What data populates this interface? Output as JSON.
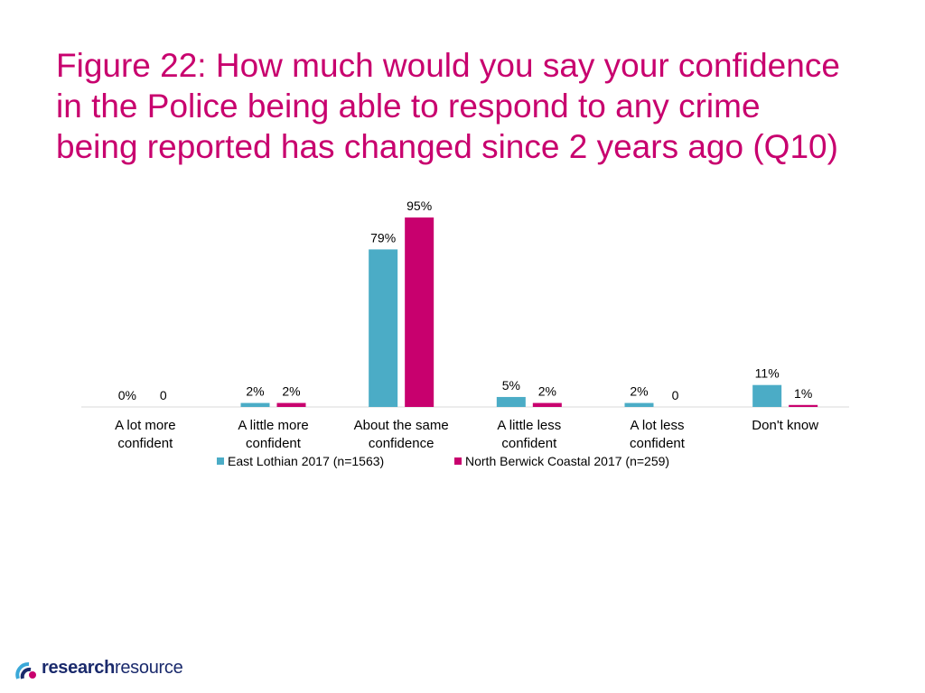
{
  "title_lines": [
    "Figure 22: How much would you say your confidence",
    "in the Police being able to respond to any crime",
    "being reported has changed since 2 years ago (Q10)"
  ],
  "colors": {
    "title": "#c8006e",
    "series1": "#4bacc6",
    "series2": "#c8006e",
    "text": "#000000"
  },
  "logo": {
    "word1": "research",
    "word2": "resource",
    "icon": "research-resource-swirl-icon"
  },
  "chart_data": {
    "type": "bar",
    "title": "Figure 22: How much would you say your confidence in the Police being able to respond to any crime being reported has changed since 2 years ago (Q10)",
    "categories": [
      [
        "A lot more",
        "confident"
      ],
      [
        "A little more",
        "confident"
      ],
      [
        "About the same",
        "confidence"
      ],
      [
        "A little less",
        "confident"
      ],
      [
        "A lot less",
        "confident"
      ],
      [
        "Don't know"
      ]
    ],
    "series": [
      {
        "name": "East Lothian 2017 (n=1563)",
        "values": [
          0,
          2,
          79,
          5,
          2,
          11
        ],
        "labels": [
          "0%",
          "2%",
          "79%",
          "5%",
          "2%",
          "11%"
        ]
      },
      {
        "name": "North Berwick Coastal 2017 (n=259)",
        "values": [
          0,
          2,
          95,
          2,
          0,
          1
        ],
        "labels": [
          "0",
          "2%",
          "95%",
          "2%",
          "0",
          "1%"
        ]
      }
    ],
    "ylim": [
      0,
      100
    ],
    "grid": false,
    "legend": "bottom"
  }
}
